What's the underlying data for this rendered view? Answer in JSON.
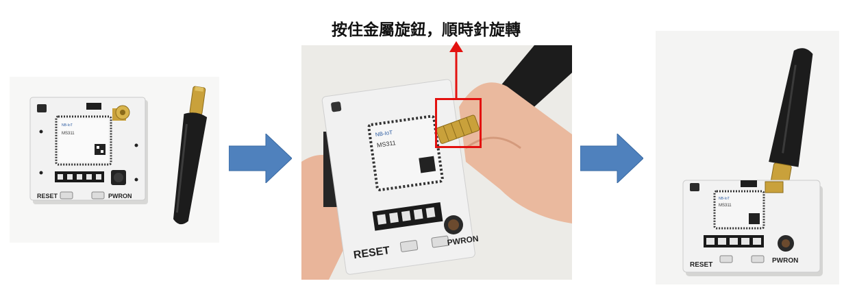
{
  "caption": "按住金屬旋鈕，順時針旋轉",
  "board_labels": {
    "reset": "RESET",
    "pwron": "PWRON"
  },
  "module_text": {
    "model": "MS311",
    "network": "NB-IoT"
  },
  "colors": {
    "arrow_fill": "#4f81bd",
    "highlight_red": "#e3110f",
    "pcb_white": "#f2f2f2",
    "antenna_black": "#1c1c1c",
    "connector_gold": "#c9a13b"
  }
}
